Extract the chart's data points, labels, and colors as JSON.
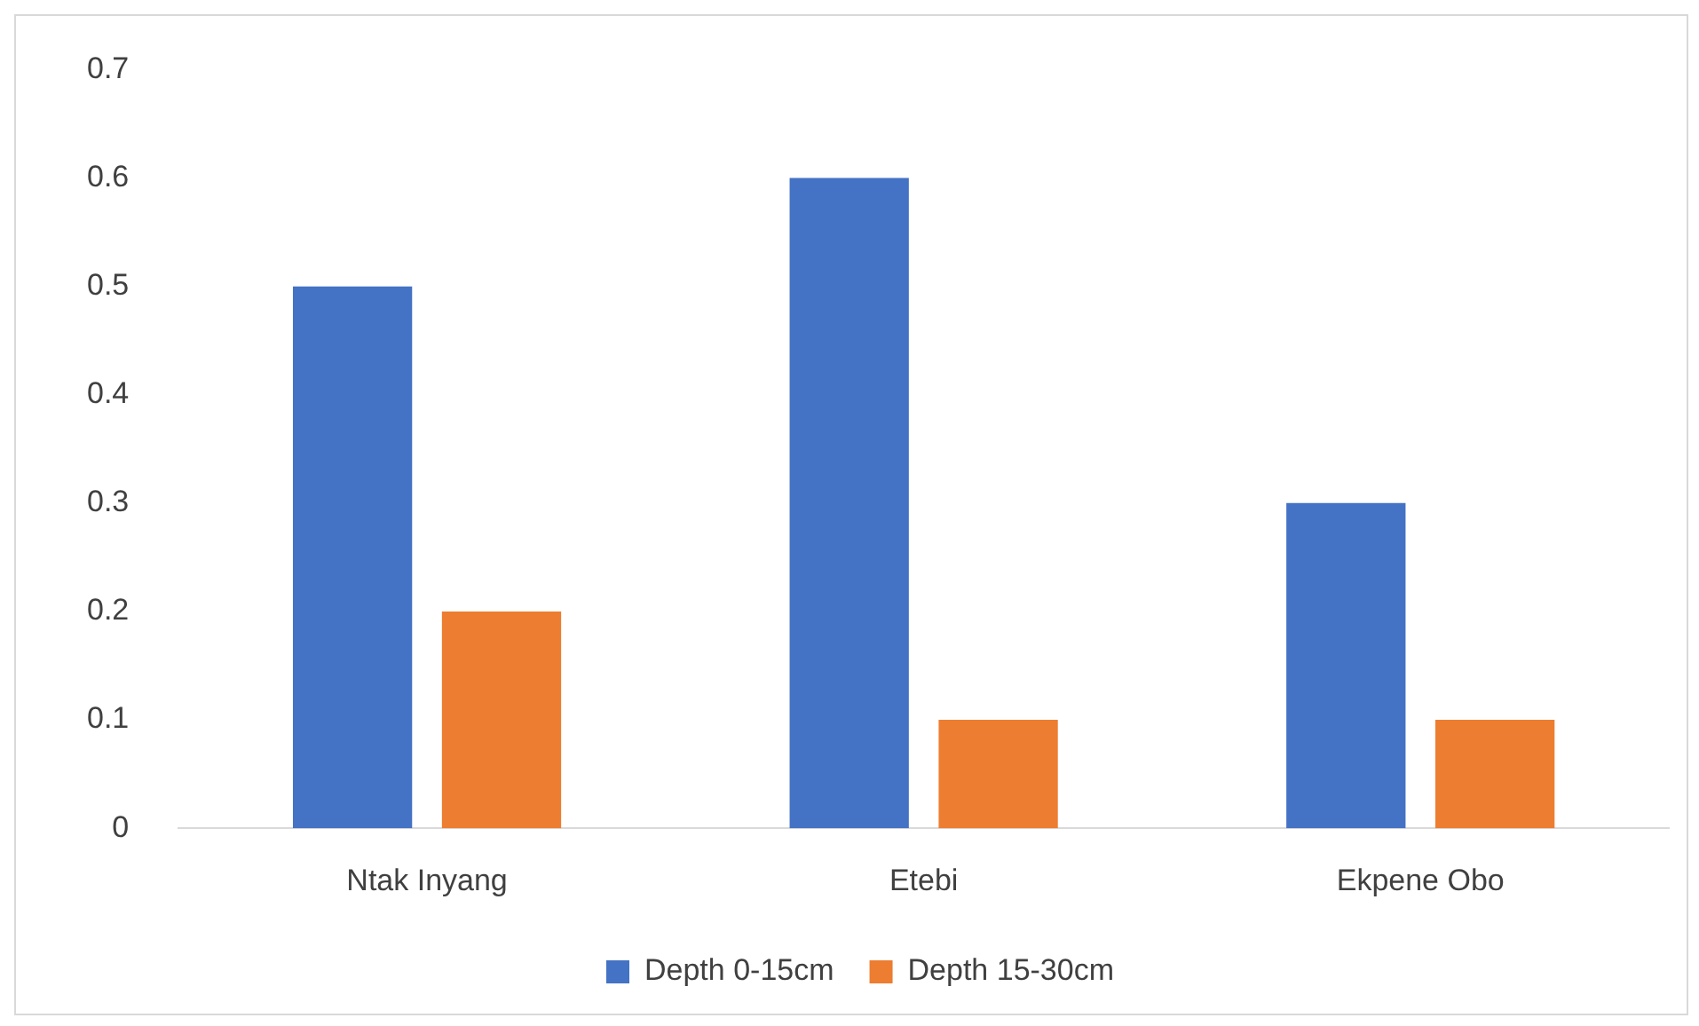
{
  "chart_data": {
    "type": "bar",
    "categories": [
      "Ntak Inyang",
      "Etebi",
      "Ekpene Obo"
    ],
    "series": [
      {
        "name": "Depth 0-15cm",
        "color": "#4472c4",
        "values": [
          0.5,
          0.6,
          0.3
        ]
      },
      {
        "name": "Depth 15-30cm",
        "color": "#ed7d31",
        "values": [
          0.2,
          0.1,
          0.1
        ]
      }
    ],
    "ylim": [
      0,
      0.7
    ],
    "yticks": [
      0,
      0.1,
      0.2,
      0.3,
      0.4,
      0.5,
      0.6,
      0.7
    ],
    "grid": false,
    "legend": "bottom"
  }
}
